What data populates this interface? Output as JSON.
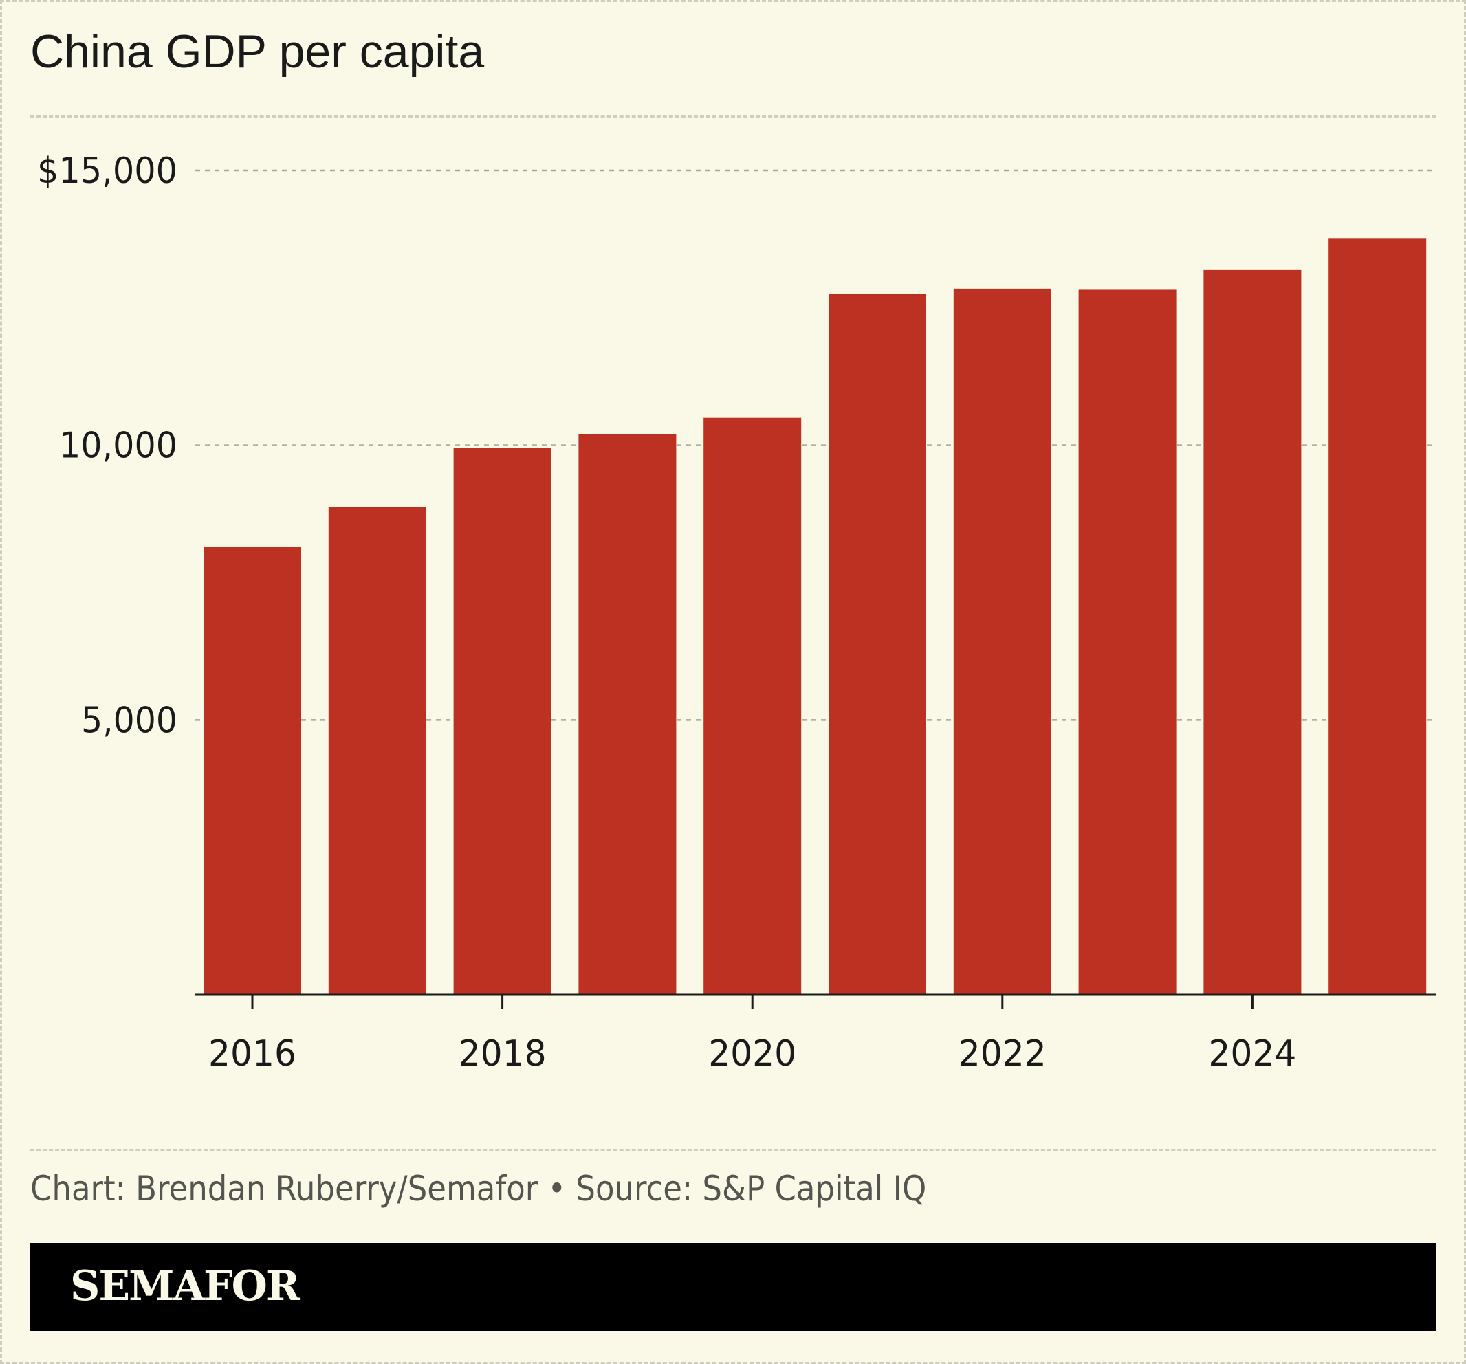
{
  "chart_data": {
    "type": "bar",
    "title": "China GDP per capita",
    "categories": [
      "2016",
      "2017",
      "2018",
      "2019",
      "2020",
      "2021",
      "2022",
      "2023",
      "2024",
      "2025"
    ],
    "values": [
      8150,
      8870,
      9950,
      10200,
      10500,
      12750,
      12850,
      12830,
      13200,
      13770
    ],
    "ylim": [
      0,
      15000
    ],
    "yticks": [
      5000,
      10000,
      15000
    ],
    "ytick_labels": [
      "5,000",
      "10,000",
      "$15,000"
    ],
    "xticks": [
      "2016",
      "2018",
      "2020",
      "2022",
      "2024"
    ],
    "xlabel": "",
    "ylabel": "",
    "grid": true,
    "bar_color": "#bc3121"
  },
  "footer": {
    "credit": "Chart: Brendan Ruberry/Semafor • Source: S&P Capital IQ",
    "brand": "SEMAFOR"
  },
  "colors": {
    "background": "#faf8e6",
    "grid": "#a8a69a",
    "text": "#1a1a1a",
    "brand_bar": "#000000"
  }
}
